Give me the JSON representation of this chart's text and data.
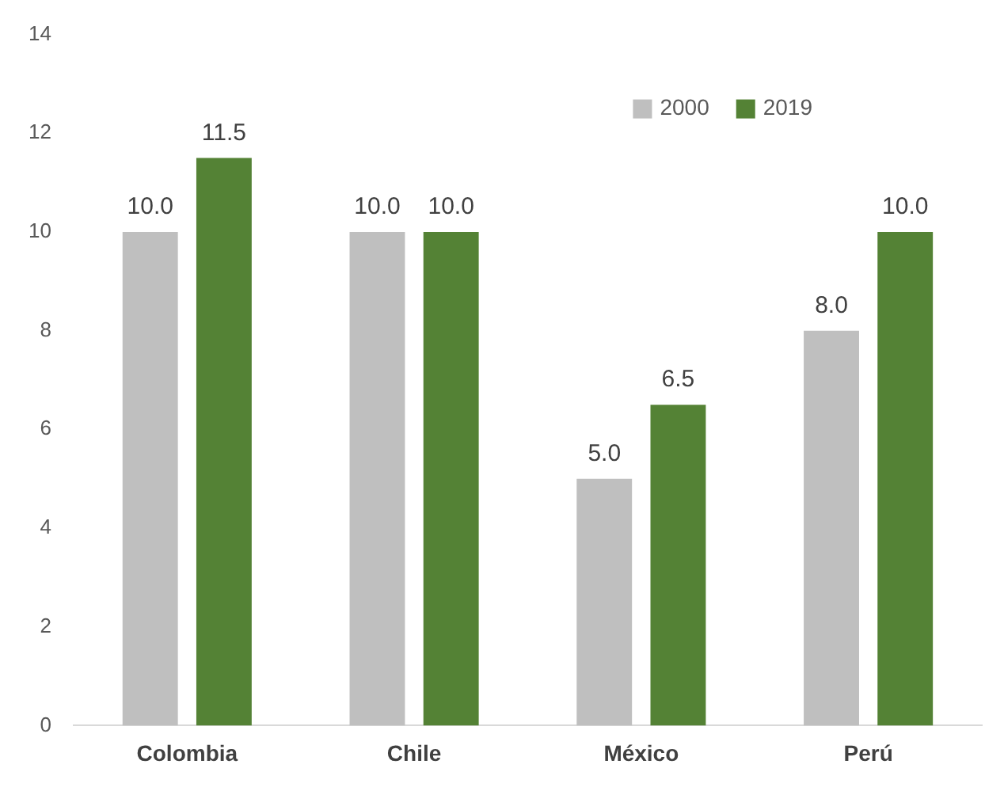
{
  "chart_data": {
    "type": "bar",
    "categories": [
      "Colombia",
      "Chile",
      "México",
      "Perú"
    ],
    "series": [
      {
        "name": "2000",
        "color": "#bfbfbf",
        "values": [
          10.0,
          10.0,
          5.0,
          8.0
        ],
        "value_labels": [
          "10.0",
          "10.0",
          "5.0",
          "8.0"
        ]
      },
      {
        "name": "2019",
        "color": "#548235",
        "values": [
          11.5,
          10.0,
          6.5,
          10.0
        ],
        "value_labels": [
          "11.5",
          "10.0",
          "6.5",
          "10.0"
        ]
      }
    ],
    "ylim": [
      0,
      14
    ],
    "yticks": [
      0,
      2,
      4,
      6,
      8,
      10,
      12,
      14
    ],
    "grid": false,
    "legend": "top right"
  }
}
